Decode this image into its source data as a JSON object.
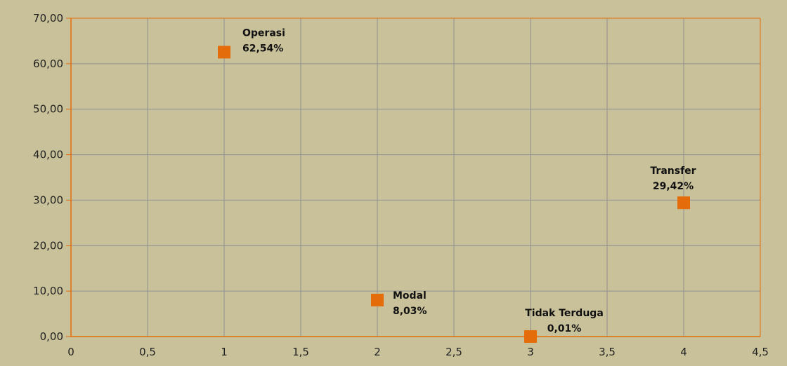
{
  "chart_data": {
    "type": "scatter",
    "xlim": [
      0,
      4.5
    ],
    "ylim": [
      0,
      70
    ],
    "x_ticks": [
      "0",
      "0,5",
      "1",
      "1,5",
      "2",
      "2,5",
      "3",
      "3,5",
      "4",
      "4,5"
    ],
    "y_ticks": [
      "0,00",
      "10,00",
      "20,00",
      "30,00",
      "40,00",
      "50,00",
      "60,00",
      "70,00"
    ],
    "grid": true,
    "marker_color": "#e46c0a",
    "points": [
      {
        "x": 1,
        "y": 62.54,
        "name": "Operasi",
        "value_label": "62,54%"
      },
      {
        "x": 2,
        "y": 8.03,
        "name": "Modal",
        "value_label": "8,03%"
      },
      {
        "x": 3,
        "y": 0.01,
        "name": "Tidak Terduga",
        "value_label": "0,01%"
      },
      {
        "x": 4,
        "y": 29.42,
        "name": "Transfer",
        "value_label": "29,42%"
      }
    ]
  },
  "colors": {
    "background": "#c9c19a",
    "grid": "#8f8f8f",
    "axis": "#e46c0a",
    "marker": "#e46c0a"
  }
}
